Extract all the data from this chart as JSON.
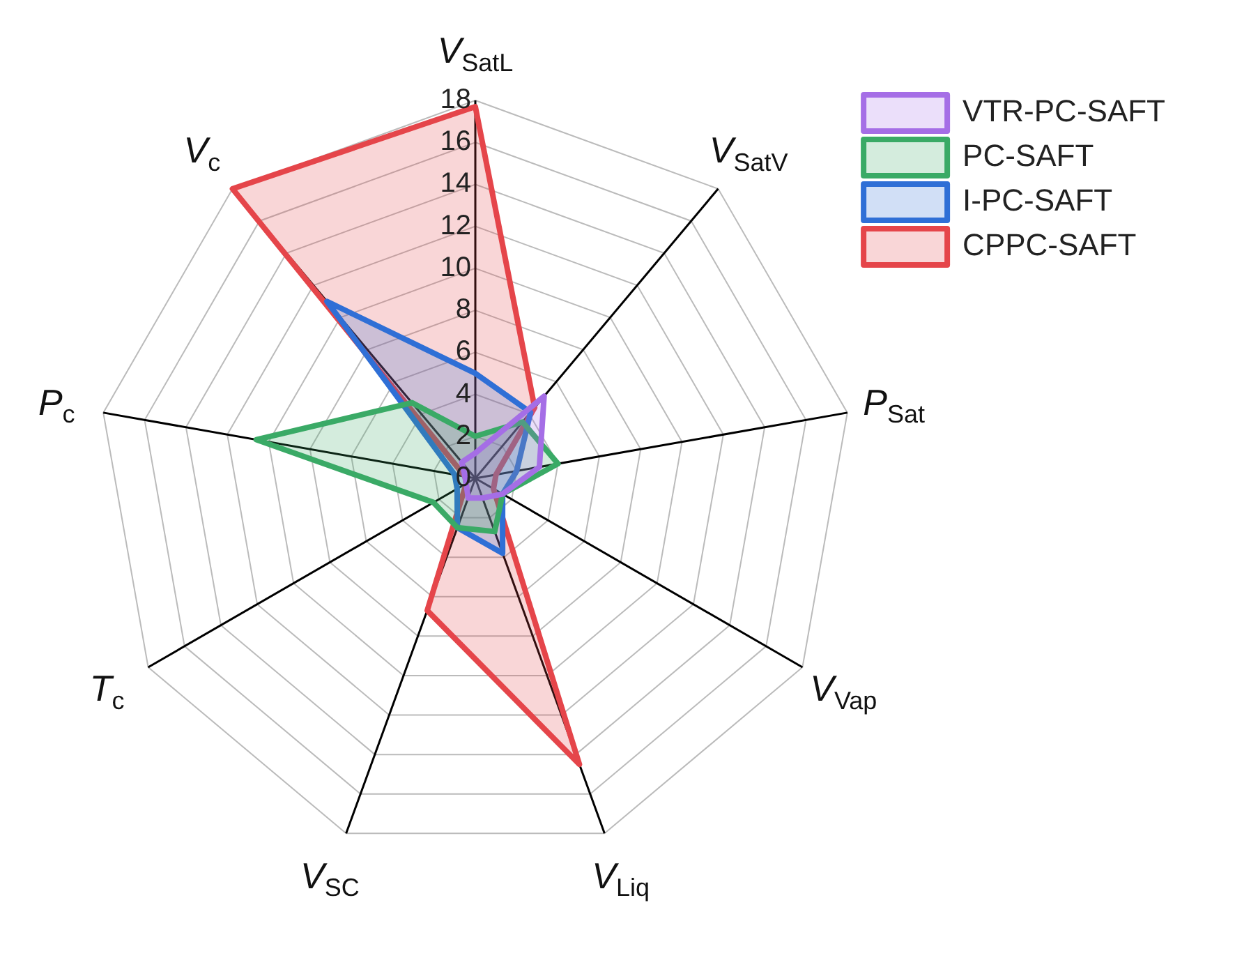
{
  "chart_data": {
    "type": "radar",
    "categories": [
      "V$_{SatL}$",
      "V$_{SatV}$",
      "P$_{Sat}$",
      "V$_{Vap}$",
      "V$_{Liq}$",
      "V$_{SC}$",
      "T$_{c}$",
      "P$_{c}$",
      "V$_{c}$"
    ],
    "ylim": [
      0,
      18
    ],
    "yticks": [
      0,
      2,
      4,
      6,
      8,
      10,
      12,
      14,
      16,
      18
    ],
    "grid": true,
    "legend": "top right",
    "marker": "none",
    "series": [
      {
        "name": "VTR-PC-SAFT",
        "color": "#a56ee6",
        "values": [
          1.2,
          5.1,
          3.1,
          1.5,
          1,
          1,
          0.5,
          0.5,
          1
        ]
      },
      {
        "name": "PC-SAFT",
        "color": "#3aaa66",
        "values": [
          2,
          3.5,
          4,
          1.5,
          2.7,
          2.5,
          2.3,
          10.6,
          4.7
        ]
      },
      {
        "name": "I-PC-SAFT",
        "color": "#2f6fd6",
        "values": [
          5,
          4.1,
          2,
          1.5,
          3.8,
          2.5,
          1,
          1,
          11
        ]
      },
      {
        "name": "CPPC-SAFT",
        "color": "#e5454a",
        "values": [
          17.7,
          4.4,
          1,
          1,
          14.5,
          6.7,
          0.5,
          0.5,
          18
        ]
      }
    ]
  }
}
